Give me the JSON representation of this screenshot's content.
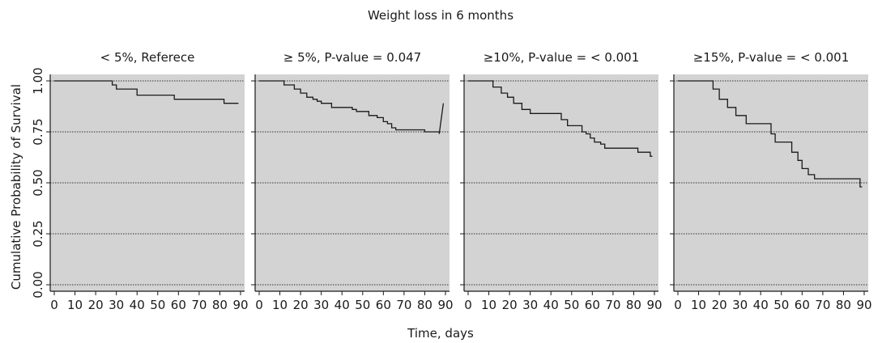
{
  "chart_data": {
    "type": "line",
    "title": "Weight loss in 6 months",
    "xlabel": "Time, days",
    "ylabel": "Cumulative Probability of Survival",
    "xlim": [
      0,
      90
    ],
    "ylim": [
      0,
      1
    ],
    "x_ticks": [
      0,
      10,
      20,
      30,
      40,
      50,
      60,
      70,
      80,
      90
    ],
    "y_ticks": [
      0,
      0.25,
      0.5,
      0.75,
      1
    ],
    "y_tick_labels": [
      "0.00",
      "0.25",
      "0.50",
      "0.75",
      "1.00"
    ],
    "grid": "horizontal dotted at y ticks",
    "panel_background": "#d3d3d3",
    "line_color": "#1a1a1a",
    "panels": [
      {
        "label": "< 5%, Referece",
        "x": [
          0,
          28,
          28,
          30,
          30,
          40,
          40,
          58,
          58,
          82,
          82,
          89
        ],
        "y": [
          1.0,
          1.0,
          0.98,
          0.98,
          0.96,
          0.96,
          0.93,
          0.93,
          0.91,
          0.91,
          0.89,
          0.89
        ]
      },
      {
        "label": "≥ 5%, P-value = 0.047",
        "x": [
          0,
          12,
          12,
          17,
          17,
          20,
          20,
          23,
          23,
          26,
          26,
          28,
          28,
          30,
          30,
          35,
          35,
          45,
          45,
          47,
          47,
          53,
          53,
          57,
          57,
          60,
          60,
          62,
          62,
          64,
          64,
          66,
          66,
          80,
          80,
          87,
          87,
          89
        ],
        "y": [
          1.0,
          1.0,
          0.98,
          0.98,
          0.96,
          0.96,
          0.94,
          0.94,
          0.92,
          0.92,
          0.91,
          0.91,
          0.9,
          0.9,
          0.89,
          0.89,
          0.87,
          0.87,
          0.86,
          0.86,
          0.85,
          0.85,
          0.83,
          0.83,
          0.82,
          0.82,
          0.8,
          0.8,
          0.79,
          0.79,
          0.77,
          0.77,
          0.76,
          0.76,
          0.75,
          0.75,
          0.74,
          0.89
        ]
      },
      {
        "label": "≥10%, P-value = < 0.001",
        "x": [
          0,
          12,
          12,
          16,
          16,
          19,
          19,
          22,
          22,
          26,
          26,
          30,
          30,
          45,
          45,
          48,
          48,
          55,
          55,
          57,
          57,
          59,
          59,
          61,
          61,
          64,
          64,
          66,
          66,
          82,
          82,
          88,
          88,
          89
        ],
        "y": [
          1.0,
          1.0,
          0.97,
          0.97,
          0.94,
          0.94,
          0.92,
          0.92,
          0.89,
          0.89,
          0.86,
          0.86,
          0.84,
          0.84,
          0.81,
          0.81,
          0.78,
          0.78,
          0.75,
          0.75,
          0.74,
          0.74,
          0.72,
          0.72,
          0.7,
          0.7,
          0.69,
          0.69,
          0.67,
          0.67,
          0.65,
          0.65,
          0.63,
          0.63
        ]
      },
      {
        "label": "≥15%, P-value = < 0.001",
        "x": [
          0,
          17,
          17,
          20,
          20,
          24,
          24,
          28,
          28,
          33,
          33,
          45,
          45,
          47,
          47,
          55,
          55,
          58,
          58,
          60,
          60,
          63,
          63,
          66,
          66,
          88,
          88,
          89
        ],
        "y": [
          1.0,
          1.0,
          0.96,
          0.96,
          0.91,
          0.91,
          0.87,
          0.87,
          0.83,
          0.83,
          0.79,
          0.79,
          0.74,
          0.74,
          0.7,
          0.7,
          0.65,
          0.65,
          0.61,
          0.61,
          0.57,
          0.57,
          0.54,
          0.54,
          0.52,
          0.52,
          0.48,
          0.48
        ]
      }
    ]
  }
}
